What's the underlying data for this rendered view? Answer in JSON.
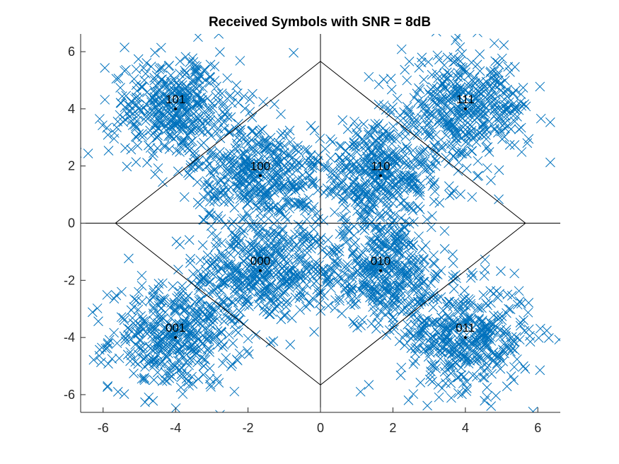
{
  "chart_data": {
    "type": "scatter",
    "title": "Received Symbols with SNR = 8dB",
    "xlabel": "",
    "ylabel": "",
    "xlim": [
      -6.62,
      6.62
    ],
    "ylim": [
      -6.62,
      6.62
    ],
    "xticks": [
      -6,
      -4,
      -2,
      0,
      2,
      4,
      6
    ],
    "yticks": [
      -6,
      -4,
      -2,
      0,
      2,
      4,
      6
    ],
    "xtick_labels": [
      "-6",
      "-4",
      "-2",
      "0",
      "2",
      "4",
      "6"
    ],
    "ytick_labels": [
      "-6",
      "-4",
      "-2",
      "0",
      "2",
      "4",
      "6"
    ],
    "grid": false,
    "legend": "none",
    "marker": "x",
    "marker_color": "#0072BD",
    "line_color": "#000000",
    "constellation": [
      {
        "label": "000",
        "x": -1.66,
        "y": -1.66
      },
      {
        "label": "001",
        "x": -4.0,
        "y": -4.0
      },
      {
        "label": "010",
        "x": 1.66,
        "y": -1.66
      },
      {
        "label": "011",
        "x": 4.0,
        "y": -4.0
      },
      {
        "label": "100",
        "x": -1.66,
        "y": 1.66
      },
      {
        "label": "101",
        "x": -4.0,
        "y": 4.0
      },
      {
        "label": "110",
        "x": 1.66,
        "y": 1.66
      },
      {
        "label": "111",
        "x": 4.0,
        "y": 4.0
      }
    ],
    "decision_boundaries": {
      "diamond": [
        [
          0,
          5.66
        ],
        [
          5.66,
          0
        ],
        [
          0,
          -5.66
        ],
        [
          -5.66,
          0
        ]
      ],
      "axes_lines": [
        [
          [
            -6.62,
            0
          ],
          [
            6.62,
            0
          ]
        ],
        [
          [
            0,
            -6.62
          ],
          [
            0,
            6.62
          ]
        ]
      ]
    },
    "received_noise_std": 0.9,
    "received_points_per_symbol": 420
  }
}
